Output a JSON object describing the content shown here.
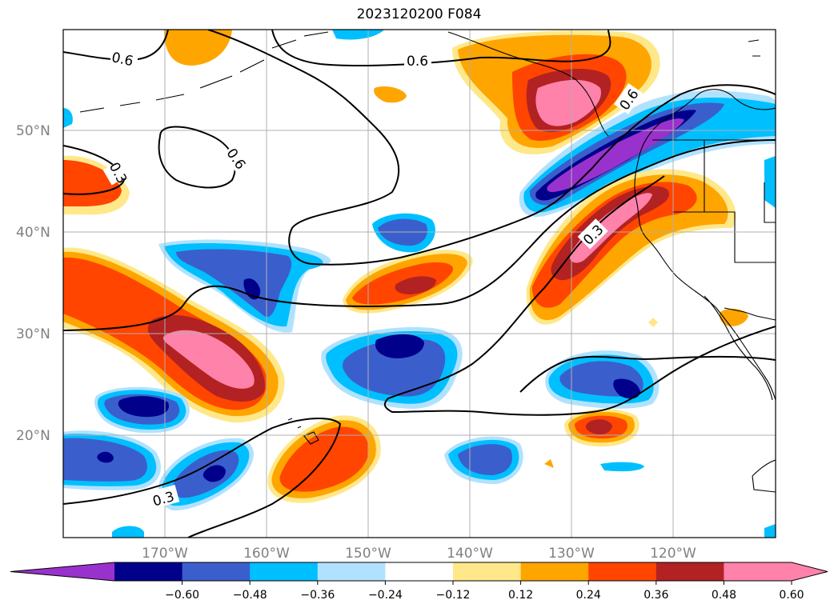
{
  "title": "2023120200 F084",
  "map": {
    "projection": "cylindrical",
    "lon_range": [
      -180,
      -110
    ],
    "lat_range": [
      10,
      60
    ],
    "lat_labels": [
      "50°N",
      "40°N",
      "30°N",
      "20°N"
    ],
    "lon_labels": [
      "170°W",
      "160°W",
      "150°W",
      "140°W",
      "130°W",
      "120°W"
    ],
    "gridlines": true,
    "contour_labels": [
      "0.6",
      "0.3",
      "0.6",
      "0.6",
      "0.6",
      "0.3",
      "0.3"
    ]
  },
  "colorbar": {
    "orientation": "horizontal",
    "extend": "both",
    "tick_labels": [
      "−0.60",
      "−0.48",
      "−0.36",
      "−0.24",
      "−0.12",
      "0.12",
      "0.24",
      "0.36",
      "0.48",
      "0.60"
    ],
    "colors": [
      "#9932cc",
      "#00008b",
      "#3a5fcd",
      "#00bfff",
      "#b0e2ff",
      "#ffffff",
      "#ffe88a",
      "#ffa500",
      "#ff4500",
      "#b22222",
      "#ff82ab",
      "#ff82ab"
    ]
  }
}
